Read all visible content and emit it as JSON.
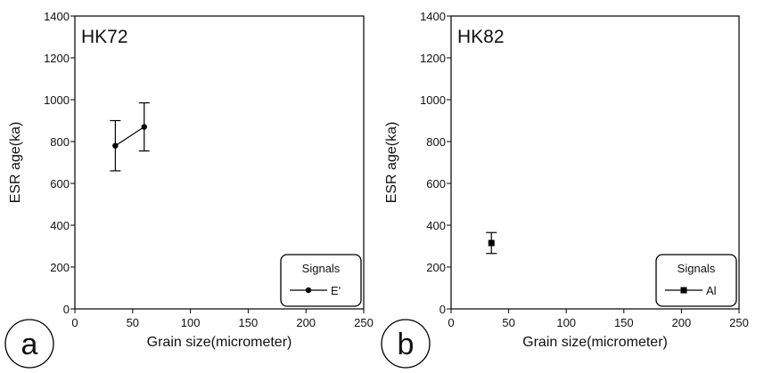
{
  "chart_data": [
    {
      "type": "scatter",
      "panel_label": "a",
      "title": "HK72",
      "xlabel": "Grain size(micrometer)",
      "ylabel": "ESR age(ka)",
      "xlim": [
        0,
        250
      ],
      "ylim": [
        0,
        1400
      ],
      "x_ticks": [
        0,
        50,
        100,
        150,
        200,
        250
      ],
      "y_ticks": [
        0,
        200,
        400,
        600,
        800,
        1000,
        1200,
        1400
      ],
      "grid": false,
      "legend": {
        "title": "Signals",
        "position": "bottom-right"
      },
      "series": [
        {
          "name": "E'",
          "marker": "circle",
          "connected": true,
          "color": "#000000",
          "points": [
            {
              "x": 35,
              "y": 780,
              "err": 120
            },
            {
              "x": 60,
              "y": 870,
              "err": 115
            }
          ]
        }
      ]
    },
    {
      "type": "scatter",
      "panel_label": "b",
      "title": "HK82",
      "xlabel": "Grain size(micrometer)",
      "ylabel": "ESR age(ka)",
      "xlim": [
        0,
        250
      ],
      "ylim": [
        0,
        1400
      ],
      "x_ticks": [
        0,
        50,
        100,
        150,
        200,
        250
      ],
      "y_ticks": [
        0,
        200,
        400,
        600,
        800,
        1000,
        1200,
        1400
      ],
      "grid": false,
      "legend": {
        "title": "Signals",
        "position": "bottom-right"
      },
      "series": [
        {
          "name": "Al",
          "marker": "square",
          "connected": false,
          "color": "#000000",
          "points": [
            {
              "x": 35,
              "y": 315,
              "err": 50
            }
          ]
        }
      ]
    }
  ]
}
